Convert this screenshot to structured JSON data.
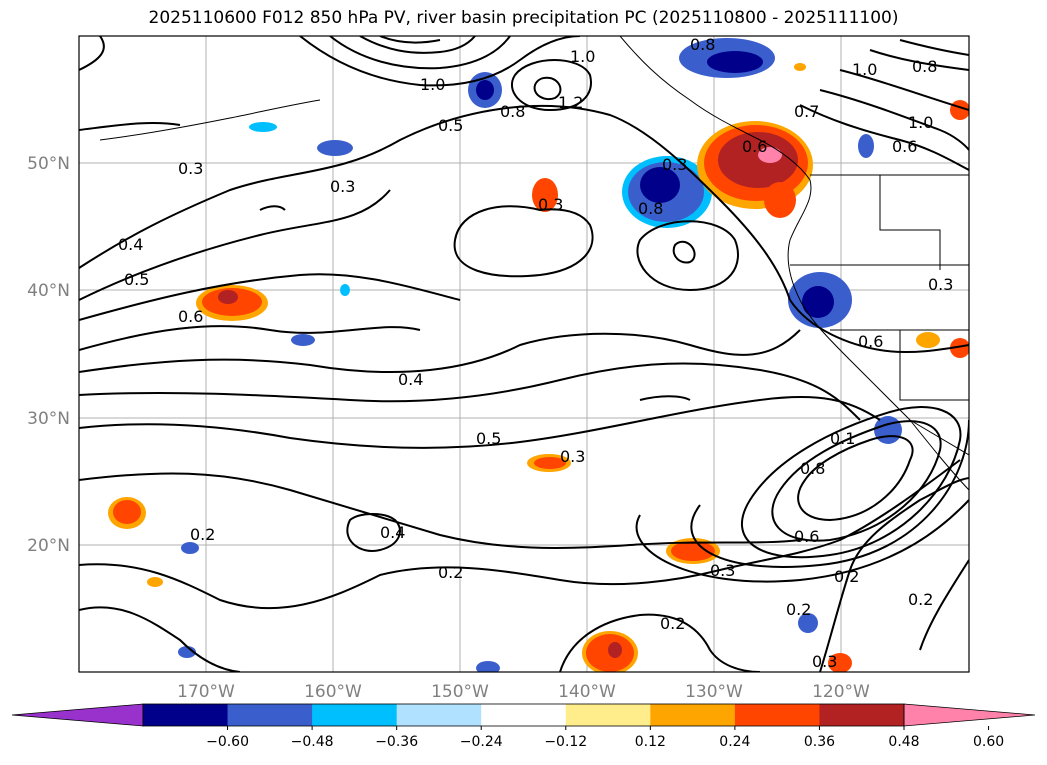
{
  "title": "2025110600 F012 850 hPa PV, river basin precipitation PC (2025110800 - 2025111100)",
  "lat_labels": [
    "50°N",
    "40°N",
    "30°N",
    "20°N"
  ],
  "lon_labels": [
    "170°W",
    "160°W",
    "150°W",
    "140°W",
    "130°W",
    "120°W"
  ],
  "contour_labels": [
    {
      "text": "0.3"
    },
    {
      "text": "0.3"
    },
    {
      "text": "0.4"
    },
    {
      "text": "0.5"
    },
    {
      "text": "0.6"
    },
    {
      "text": "1.0"
    },
    {
      "text": "1.0"
    },
    {
      "text": "1.2"
    },
    {
      "text": "0.5"
    },
    {
      "text": "0.8"
    },
    {
      "text": "0.3"
    },
    {
      "text": "0.3"
    },
    {
      "text": "0.8"
    },
    {
      "text": "0.7"
    },
    {
      "text": "1.0"
    },
    {
      "text": "0.8"
    },
    {
      "text": "0.6"
    },
    {
      "text": "1.0"
    },
    {
      "text": "0.4"
    },
    {
      "text": "0.5"
    },
    {
      "text": "0.3"
    },
    {
      "text": "0.6"
    },
    {
      "text": "0.3"
    },
    {
      "text": "0.1"
    },
    {
      "text": "0.8"
    },
    {
      "text": "0.6"
    },
    {
      "text": "0.3"
    },
    {
      "text": "0.2"
    },
    {
      "text": "0.2"
    },
    {
      "text": "0.2"
    },
    {
      "text": "0.2"
    },
    {
      "text": "0.2"
    },
    {
      "text": "0.2"
    },
    {
      "text": "0.3"
    },
    {
      "text": "0.4"
    },
    {
      "text": "0.6"
    },
    {
      "text": "0.8"
    }
  ],
  "colorbar": {
    "ticks": [
      "−0.60",
      "−0.48",
      "−0.36",
      "−0.24",
      "−0.12",
      "0.12",
      "0.24",
      "0.36",
      "0.48",
      "0.60"
    ],
    "colors": [
      "#9932cc",
      "#00008b",
      "#3a5fcd",
      "#00bfff",
      "#b0e2ff",
      "#ffffff",
      "#ffec8b",
      "#ffa500",
      "#ff4500",
      "#b22222",
      "#ff82ab"
    ]
  }
}
